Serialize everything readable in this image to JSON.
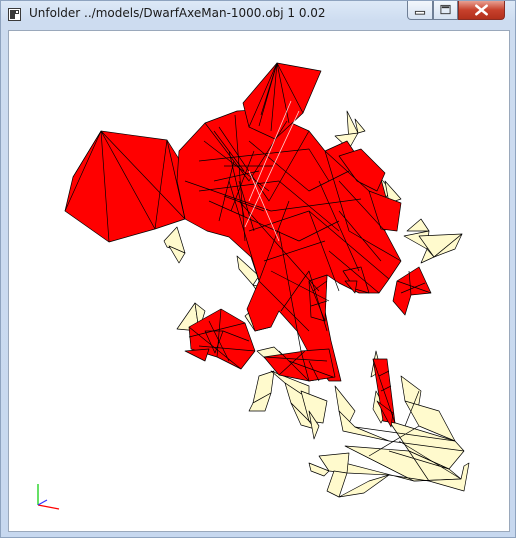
{
  "window": {
    "title": "Unfolder ../models/DwarfAxeMan-1000.obj 1 0.02",
    "icon": "app-window-icon",
    "controls": [
      "minimize-icon",
      "maximize-icon",
      "close-icon"
    ]
  },
  "viewport": {
    "background": "#ffffff",
    "fill_colors": {
      "unfolded_red": "#ff0000",
      "unfolded_cream": "#fffacd",
      "edges": "#000000"
    },
    "axes_colors": {
      "x": "#ff0000",
      "y": "#00cc00",
      "z": "#3333ff"
    }
  }
}
